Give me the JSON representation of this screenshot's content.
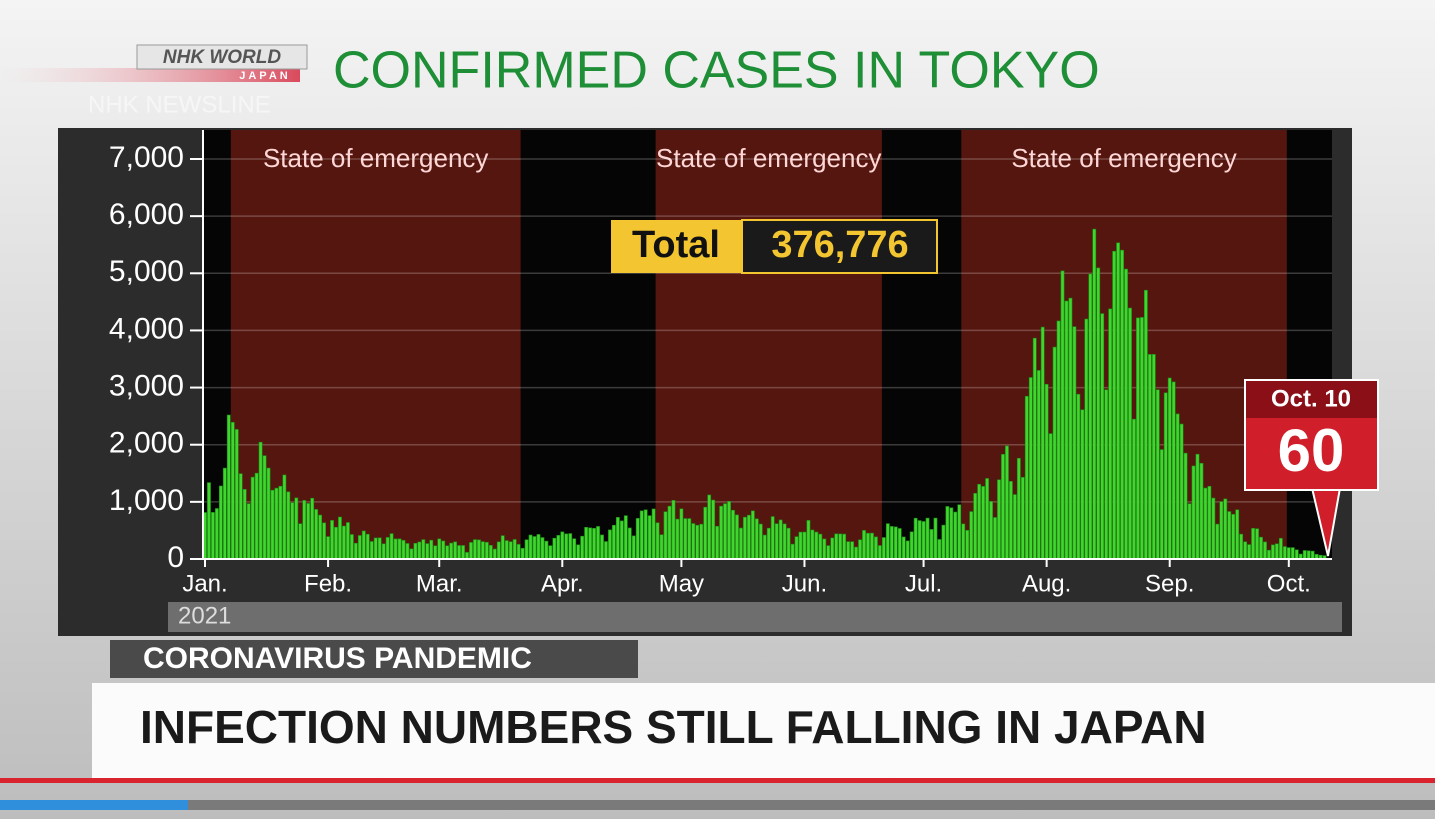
{
  "brand": {
    "name": "NHK WORLD",
    "sub": "JAPAN",
    "program": "NHK NEWSLINE"
  },
  "chart_data": {
    "type": "bar",
    "title": "CONFIRMED CASES IN TOKYO",
    "year": "2021",
    "color": "#3fd62e",
    "grid": true,
    "ylim": [
      0,
      7000
    ],
    "yticks": [
      0,
      {
        "value": 1000,
        "label": "1,000"
      },
      {
        "value": 2000,
        "label": "2,000"
      },
      {
        "value": 3000,
        "label": "3,000"
      },
      {
        "value": 4000,
        "label": "4,000"
      },
      {
        "value": 5000,
        "label": "5,000"
      },
      {
        "value": 6000,
        "label": "6,000"
      },
      {
        "value": 7000,
        "label": "7,000"
      }
    ],
    "spans": [
      {
        "label": "State of emergency",
        "start_index": 7,
        "end_index": 79,
        "color": "#55160f"
      },
      {
        "label": "State of emergency",
        "start_index": 114,
        "end_index": 170,
        "color": "#55160f"
      },
      {
        "label": "State of emergency",
        "start_index": 191,
        "end_index": 272,
        "color": "#55160f"
      }
    ],
    "total": {
      "label": "Total",
      "value": "376,776"
    },
    "callout": {
      "date": "Oct. 10",
      "value": 60
    },
    "categories": [
      "Jan.",
      null,
      null,
      null,
      null,
      null,
      null,
      null,
      null,
      null,
      null,
      null,
      null,
      null,
      null,
      null,
      null,
      null,
      null,
      null,
      null,
      null,
      null,
      null,
      null,
      null,
      null,
      null,
      null,
      null,
      null,
      "Feb.",
      null,
      null,
      null,
      null,
      null,
      null,
      null,
      null,
      null,
      null,
      null,
      null,
      null,
      null,
      null,
      null,
      null,
      null,
      null,
      null,
      null,
      null,
      null,
      null,
      null,
      null,
      null,
      "Mar.",
      null,
      null,
      null,
      null,
      null,
      null,
      null,
      null,
      null,
      null,
      null,
      null,
      null,
      null,
      null,
      null,
      null,
      null,
      null,
      null,
      null,
      null,
      null,
      null,
      null,
      null,
      null,
      null,
      null,
      null,
      "Apr.",
      null,
      null,
      null,
      null,
      null,
      null,
      null,
      null,
      null,
      null,
      null,
      null,
      null,
      null,
      null,
      null,
      null,
      null,
      null,
      null,
      null,
      null,
      null,
      null,
      null,
      null,
      null,
      null,
      null,
      "May",
      null,
      null,
      null,
      null,
      null,
      null,
      null,
      null,
      null,
      null,
      null,
      null,
      null,
      null,
      null,
      null,
      null,
      null,
      null,
      null,
      null,
      null,
      null,
      null,
      null,
      null,
      null,
      null,
      null,
      null,
      "Jun.",
      null,
      null,
      null,
      null,
      null,
      null,
      null,
      null,
      null,
      null,
      null,
      null,
      null,
      null,
      null,
      null,
      null,
      null,
      null,
      null,
      null,
      null,
      null,
      null,
      null,
      null,
      null,
      null,
      null,
      "Jul.",
      null,
      null,
      null,
      null,
      null,
      null,
      null,
      null,
      null,
      null,
      null,
      null,
      null,
      null,
      null,
      null,
      null,
      null,
      null,
      null,
      null,
      null,
      null,
      null,
      null,
      null,
      null,
      null,
      null,
      null,
      "Aug.",
      null,
      null,
      null,
      null,
      null,
      null,
      null,
      null,
      null,
      null,
      null,
      null,
      null,
      null,
      null,
      null,
      null,
      null,
      null,
      null,
      null,
      null,
      null,
      null,
      null,
      null,
      null,
      null,
      null,
      null,
      "Sep.",
      null,
      null,
      null,
      null,
      null,
      null,
      null,
      null,
      null,
      null,
      null,
      null,
      null,
      null,
      null,
      null,
      null,
      null,
      null,
      null,
      null,
      null,
      null,
      null,
      null,
      null,
      null,
      null,
      null,
      "Oct.",
      null,
      null,
      null,
      null,
      null,
      null,
      null,
      null,
      null
    ],
    "values": [
      814,
      1337,
      816,
      884,
      1278,
      1591,
      2520,
      2392,
      2268,
      1494,
      1219,
      970,
      1433,
      1502,
      2044,
      1809,
      1592,
      1204,
      1240,
      1274,
      1471,
      1175,
      986,
      1070,
      618,
      1026,
      973,
      1064,
      868,
      769,
      633,
      393,
      676,
      556,
      735,
      577,
      639,
      429,
      276,
      412,
      491,
      434,
      307,
      369,
      371,
      266,
      378,
      445,
      352,
      353,
      327,
      272,
      178,
      275,
      298,
      340,
      270,
      329,
      232,
      353,
      316,
      232,
      279,
      301,
      237,
      237,
      116,
      290,
      340,
      335,
      304,
      293,
      239,
      175,
      300,
      409,
      323,
      303,
      342,
      256,
      187,
      337,
      420,
      394,
      430,
      376,
      313,
      234,
      364,
      414,
      475,
      440,
      446,
      355,
      249,
      399,
      555,
      545,
      537,
      570,
      421,
      306,
      510,
      591,
      729,
      667,
      759,
      543,
      405,
      711,
      843,
      861,
      759,
      876,
      635,
      425,
      828,
      925,
      1027,
      698,
      879,
      708,
      708,
      621,
      591,
      609,
      907,
      1121,
      1032,
      573,
      925,
      969,
      1010,
      854,
      772,
      542,
      732,
      767,
      843,
      704,
      612,
      419,
      539,
      743,
      618,
      684,
      614,
      539,
      260,
      392,
      471,
      472,
      676,
      508,
      472,
      436,
      351,
      235,
      369,
      440,
      439,
      436,
      304,
      304,
      209,
      337,
      501,
      452,
      453,
      388,
      236,
      376,
      619,
      570,
      562,
      534,
      386,
      317,
      476,
      714,
      673,
      657,
      716,
      518,
      716,
      342,
      593,
      920,
      896,
      822,
      950,
      614,
      502,
      830,
      1149,
      1308,
      1271,
      1410,
      1008,
      727,
      1387,
      1832,
      1979,
      1359,
      1128,
      1763,
      1429,
      2848,
      3177,
      3865,
      3300,
      4058,
      3058,
      2195,
      3709,
      4166,
      5042,
      4515,
      4566,
      4066,
      2884,
      2612,
      4200,
      4989,
      5773,
      5094,
      4295,
      2962,
      4377,
      5386,
      5534,
      5405,
      5074,
      4392,
      2447,
      4220,
      4228,
      4704,
      3581,
      3581,
      2962,
      1915,
      2909,
      3168,
      3099,
      2539,
      2362,
      1853,
      968,
      1629,
      1834,
      1675,
      1242,
      1273,
      1067,
      611,
      1004,
      1052,
      831,
      782,
      862,
      435,
      302,
      253,
      537,
      531,
      382,
      299,
      154,
      248,
      267,
      363,
      218,
      200,
      200,
      161,
      87,
      149,
      144,
      138,
      82,
      66,
      60
    ]
  },
  "ticker": {
    "tag": "CORONAVIRUS PANDEMIC",
    "headline": "INFECTION NUMBERS STILL FALLING IN JAPAN"
  }
}
